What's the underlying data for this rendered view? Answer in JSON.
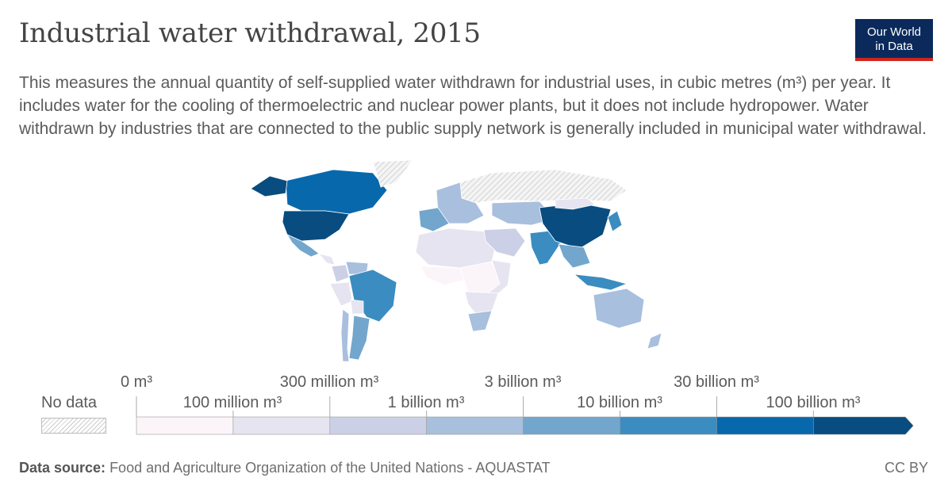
{
  "header": {
    "title": "Industrial water withdrawal, 2015",
    "subtitle": "This measures the annual quantity of self-supplied water withdrawn for industrial uses, in cubic metres (m³) per year. It includes water for the cooling of thermoelectric and nuclear power plants, but it does not include hydropower. Water withdrawn by industries that are connected to the public supply network is generally included in municipal water withdrawal.",
    "logo_line1": "Our World",
    "logo_line2": "in Data"
  },
  "colors": {
    "no_data": "#dddddd",
    "bins": [
      "#fbf5fa",
      "#e6e4f0",
      "#cbd0e6",
      "#a8bfdd",
      "#72a6cd",
      "#3b8cc0",
      "#0868ac",
      "#084c80"
    ]
  },
  "legend": {
    "no_data_label": "No data",
    "upper_labels": [
      "0 m³",
      "300 million m³",
      "3 billion m³",
      "30 billion m³"
    ],
    "lower_labels": [
      "100 million m³",
      "1 billion m³",
      "10 billion m³",
      "100 billion m³"
    ]
  },
  "map_data": {
    "regions": [
      {
        "name": "Canada",
        "bin": 6
      },
      {
        "name": "United States",
        "bin": 7
      },
      {
        "name": "Alaska",
        "bin": 7
      },
      {
        "name": "Greenland",
        "bin": -1
      },
      {
        "name": "Mexico",
        "bin": 4
      },
      {
        "name": "Central America",
        "bin": 1
      },
      {
        "name": "Colombia",
        "bin": 2
      },
      {
        "name": "Venezuela",
        "bin": 3
      },
      {
        "name": "Brazil",
        "bin": 5
      },
      {
        "name": "Peru",
        "bin": 1
      },
      {
        "name": "Bolivia",
        "bin": 1
      },
      {
        "name": "Argentina",
        "bin": 4
      },
      {
        "name": "Chile",
        "bin": 3
      },
      {
        "name": "Russia",
        "bin": -1
      },
      {
        "name": "Europe",
        "bin": 3
      },
      {
        "name": "Western Europe",
        "bin": 4
      },
      {
        "name": "North Africa",
        "bin": 1
      },
      {
        "name": "West Africa",
        "bin": 0
      },
      {
        "name": "Central Africa",
        "bin": 0
      },
      {
        "name": "East Africa",
        "bin": 1
      },
      {
        "name": "Southern Africa",
        "bin": 1
      },
      {
        "name": "South Africa",
        "bin": 3
      },
      {
        "name": "Middle East",
        "bin": 2
      },
      {
        "name": "Central Asia",
        "bin": 3
      },
      {
        "name": "India",
        "bin": 5
      },
      {
        "name": "China",
        "bin": 7
      },
      {
        "name": "Mongolia",
        "bin": 1
      },
      {
        "name": "Japan",
        "bin": 5
      },
      {
        "name": "Southeast Asia",
        "bin": 4
      },
      {
        "name": "Indonesia",
        "bin": 5
      },
      {
        "name": "Australia",
        "bin": 3
      },
      {
        "name": "New Zealand",
        "bin": 3
      }
    ]
  },
  "footer": {
    "source_label": "Data source:",
    "source_text": "Food and Agriculture Organization of the United Nations - AQUASTAT",
    "license": "CC BY"
  }
}
